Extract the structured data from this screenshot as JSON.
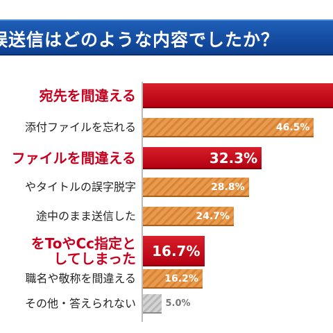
{
  "title": "誤送信はどのような内容でしたか？",
  "colors": {
    "title_bg": "#1a56a8",
    "highlight": "#c8001e",
    "orange": "#e08c3c",
    "gray": "#c0c0c0"
  },
  "chart_data": {
    "type": "bar",
    "orientation": "horizontal",
    "title": "誤送信はどのような内容でしたか？",
    "categories": [
      "宛先を間違える",
      "添付ファイルを忘れる",
      "ファイルを間違える",
      "やタイトルの誤字脱字",
      "途中のまま送信した",
      "をToやCc指定としてしまった",
      "職名や敬称を間違える",
      "その他・答えられない"
    ],
    "label_lines": [
      [
        "宛先を間違える"
      ],
      [
        "添付ファイルを忘れる"
      ],
      [
        "ファイルを間違える"
      ],
      [
        "やタイトルの誤字脱字"
      ],
      [
        "途中のまま送信した"
      ],
      [
        "をToやCc指定と",
        "してしまった"
      ],
      [
        "職名や敬称を間違える"
      ],
      [
        "その他・答えられない"
      ]
    ],
    "values": [
      null,
      46.5,
      32.3,
      28.8,
      24.7,
      16.7,
      16.2,
      5.0
    ],
    "value_labels": [
      "",
      "46.5%",
      "32.3%",
      "28.8%",
      "24.7%",
      "16.7%",
      "16.2%",
      "5.0%"
    ],
    "highlight": [
      true,
      false,
      true,
      false,
      false,
      true,
      false,
      false
    ],
    "bar_style": [
      "red",
      "orange",
      "red",
      "orange",
      "orange",
      "red",
      "orange",
      "gray"
    ],
    "xlim": [
      0,
      60
    ],
    "xlabel": "",
    "ylabel": ""
  }
}
